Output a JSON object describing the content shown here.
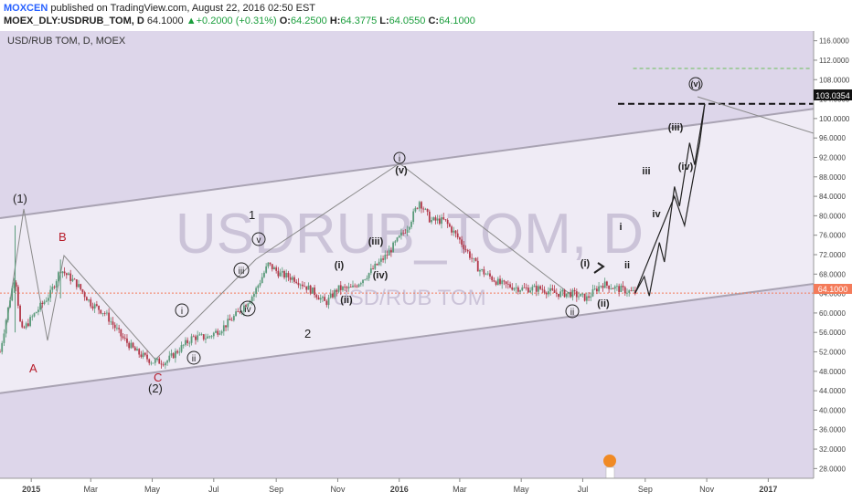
{
  "header": {
    "author": "MOXCEN",
    "published_text": " published on TradingView.com, August 22, 2016 02:50 EST",
    "symbol": "MOEX_DLY:USDRUB_TOM, D",
    "last": "64.1000",
    "arrow": "▲",
    "change": "+0.2000 (+0.31%)",
    "open_label": "O:",
    "open": "64.2500",
    "high_label": "H:",
    "high": "64.3775",
    "low_label": "L:",
    "low": "64.0550",
    "close_label": "C:",
    "close": "64.1000"
  },
  "chart_title": "USD/RUB TOM, D, MOEX",
  "watermark": {
    "main": "USDRUB_TOM, D",
    "sub": "USD/RUB TOM"
  },
  "colors": {
    "up": "#5a9a7a",
    "down": "#b3394a",
    "background": "#ddd6ea",
    "channel": "#efebf5",
    "last_price": "#f47b5a"
  },
  "price_axis": {
    "ticks": [
      "116.0000",
      "112.0000",
      "108.0000",
      "104.0000",
      "100.0000",
      "96.0000",
      "92.0000",
      "88.0000",
      "84.0000",
      "80.0000",
      "76.0000",
      "72.0000",
      "68.0000",
      "64.0000",
      "60.0000",
      "56.0000",
      "52.0000",
      "48.0000",
      "44.0000",
      "40.0000",
      "36.0000",
      "32.0000",
      "28.0000"
    ],
    "last_price_label": "64.1000",
    "target_label": "103.0354"
  },
  "time_axis": {
    "labels": [
      "2015",
      "Mar",
      "May",
      "Jul",
      "Sep",
      "Nov",
      "2016",
      "Mar",
      "May",
      "Jul",
      "Sep",
      "Nov",
      "2017"
    ]
  },
  "wave_labels": {
    "p1": "(1)",
    "A": "A",
    "B": "B",
    "C": "C",
    "p2": "(2)",
    "one": "1",
    "two": "2",
    "c_i": "i",
    "c_ii": "ii",
    "c_iii": "iii",
    "c_iv": "iv",
    "c_v": "v",
    "i_": "(i)",
    "ii_": "(ii)",
    "iii_": "(iii)",
    "iv_": "(iv)",
    "v_": "(v)",
    "top_i": "i",
    "bot_ii": "ii",
    "pi2": "(i)",
    "pii2": "(ii)",
    "s_i": "i",
    "s_ii": "ii",
    "s_iii": "iii",
    "s_iv": "iv",
    "piii3": "(iii)",
    "piv3": "(iv)",
    "pv3": "(v)"
  },
  "chart_data": {
    "type": "candlestick",
    "title": "USD/RUB TOM, D, MOEX",
    "y_range": [
      26,
      118
    ],
    "x_range": [
      "2014-12-01",
      "2017-02-15"
    ],
    "last_price": 64.1,
    "target_price": 103.0354,
    "path_points": [
      [
        "2014-12-01",
        52
      ],
      [
        "2014-12-10",
        62
      ],
      [
        "2014-12-16",
        68
      ],
      [
        "2014-12-22",
        56
      ],
      [
        "2015-01-05",
        60
      ],
      [
        "2015-01-20",
        64
      ],
      [
        "2015-01-30",
        69
      ],
      [
        "2015-02-15",
        66
      ],
      [
        "2015-03-01",
        62
      ],
      [
        "2015-03-15",
        60
      ],
      [
        "2015-04-01",
        55
      ],
      [
        "2015-04-15",
        52
      ],
      [
        "2015-05-01",
        50
      ],
      [
        "2015-05-15",
        50
      ],
      [
        "2015-05-25",
        52
      ],
      [
        "2015-06-10",
        55
      ],
      [
        "2015-06-25",
        55
      ],
      [
        "2015-07-10",
        57
      ],
      [
        "2015-07-25",
        60
      ],
      [
        "2015-08-10",
        64
      ],
      [
        "2015-08-24",
        70
      ],
      [
        "2015-09-05",
        68
      ],
      [
        "2015-09-20",
        67
      ],
      [
        "2015-10-10",
        64
      ],
      [
        "2015-10-20",
        62
      ],
      [
        "2015-11-01",
        65
      ],
      [
        "2015-11-15",
        65
      ],
      [
        "2015-12-01",
        68
      ],
      [
        "2015-12-20",
        72
      ],
      [
        "2016-01-10",
        78
      ],
      [
        "2016-01-21",
        83
      ],
      [
        "2016-02-01",
        79
      ],
      [
        "2016-02-15",
        79
      ],
      [
        "2016-03-01",
        75
      ],
      [
        "2016-03-20",
        69
      ],
      [
        "2016-04-10",
        66
      ],
      [
        "2016-05-01",
        65
      ],
      [
        "2016-05-20",
        65
      ],
      [
        "2016-06-05",
        64
      ],
      [
        "2016-06-20",
        64
      ],
      [
        "2016-07-05",
        63
      ],
      [
        "2016-07-20",
        66
      ],
      [
        "2016-08-05",
        65
      ],
      [
        "2016-08-22",
        64.1
      ]
    ],
    "spikes": [
      [
        "2014-12-16",
        78,
        56
      ],
      [
        "2015-01-30",
        71,
        63
      ]
    ],
    "channel_upper": [
      [
        "2014-12-01",
        79.5
      ],
      [
        "2017-02-15",
        102
      ]
    ],
    "channel_lower": [
      [
        "2014-12-01",
        43.5
      ],
      [
        "2017-02-15",
        66
      ]
    ],
    "projection": [
      [
        "2016-08-22",
        64.1
      ],
      [
        "2016-08-31",
        67.5
      ],
      [
        "2016-09-05",
        63.5
      ],
      [
        "2016-09-15",
        74.5
      ],
      [
        "2016-09-20",
        70.5
      ],
      [
        "2016-09-30",
        86
      ],
      [
        "2016-10-05",
        82
      ],
      [
        "2016-10-15",
        95
      ],
      [
        "2016-10-20",
        90.5
      ],
      [
        "2016-10-30",
        103
      ]
    ],
    "projection_alt": [
      [
        "2016-08-22",
        64.1
      ],
      [
        "2016-09-30",
        84
      ],
      [
        "2016-10-10",
        78
      ],
      [
        "2016-10-25",
        95
      ],
      [
        "2016-10-30",
        103
      ]
    ]
  }
}
